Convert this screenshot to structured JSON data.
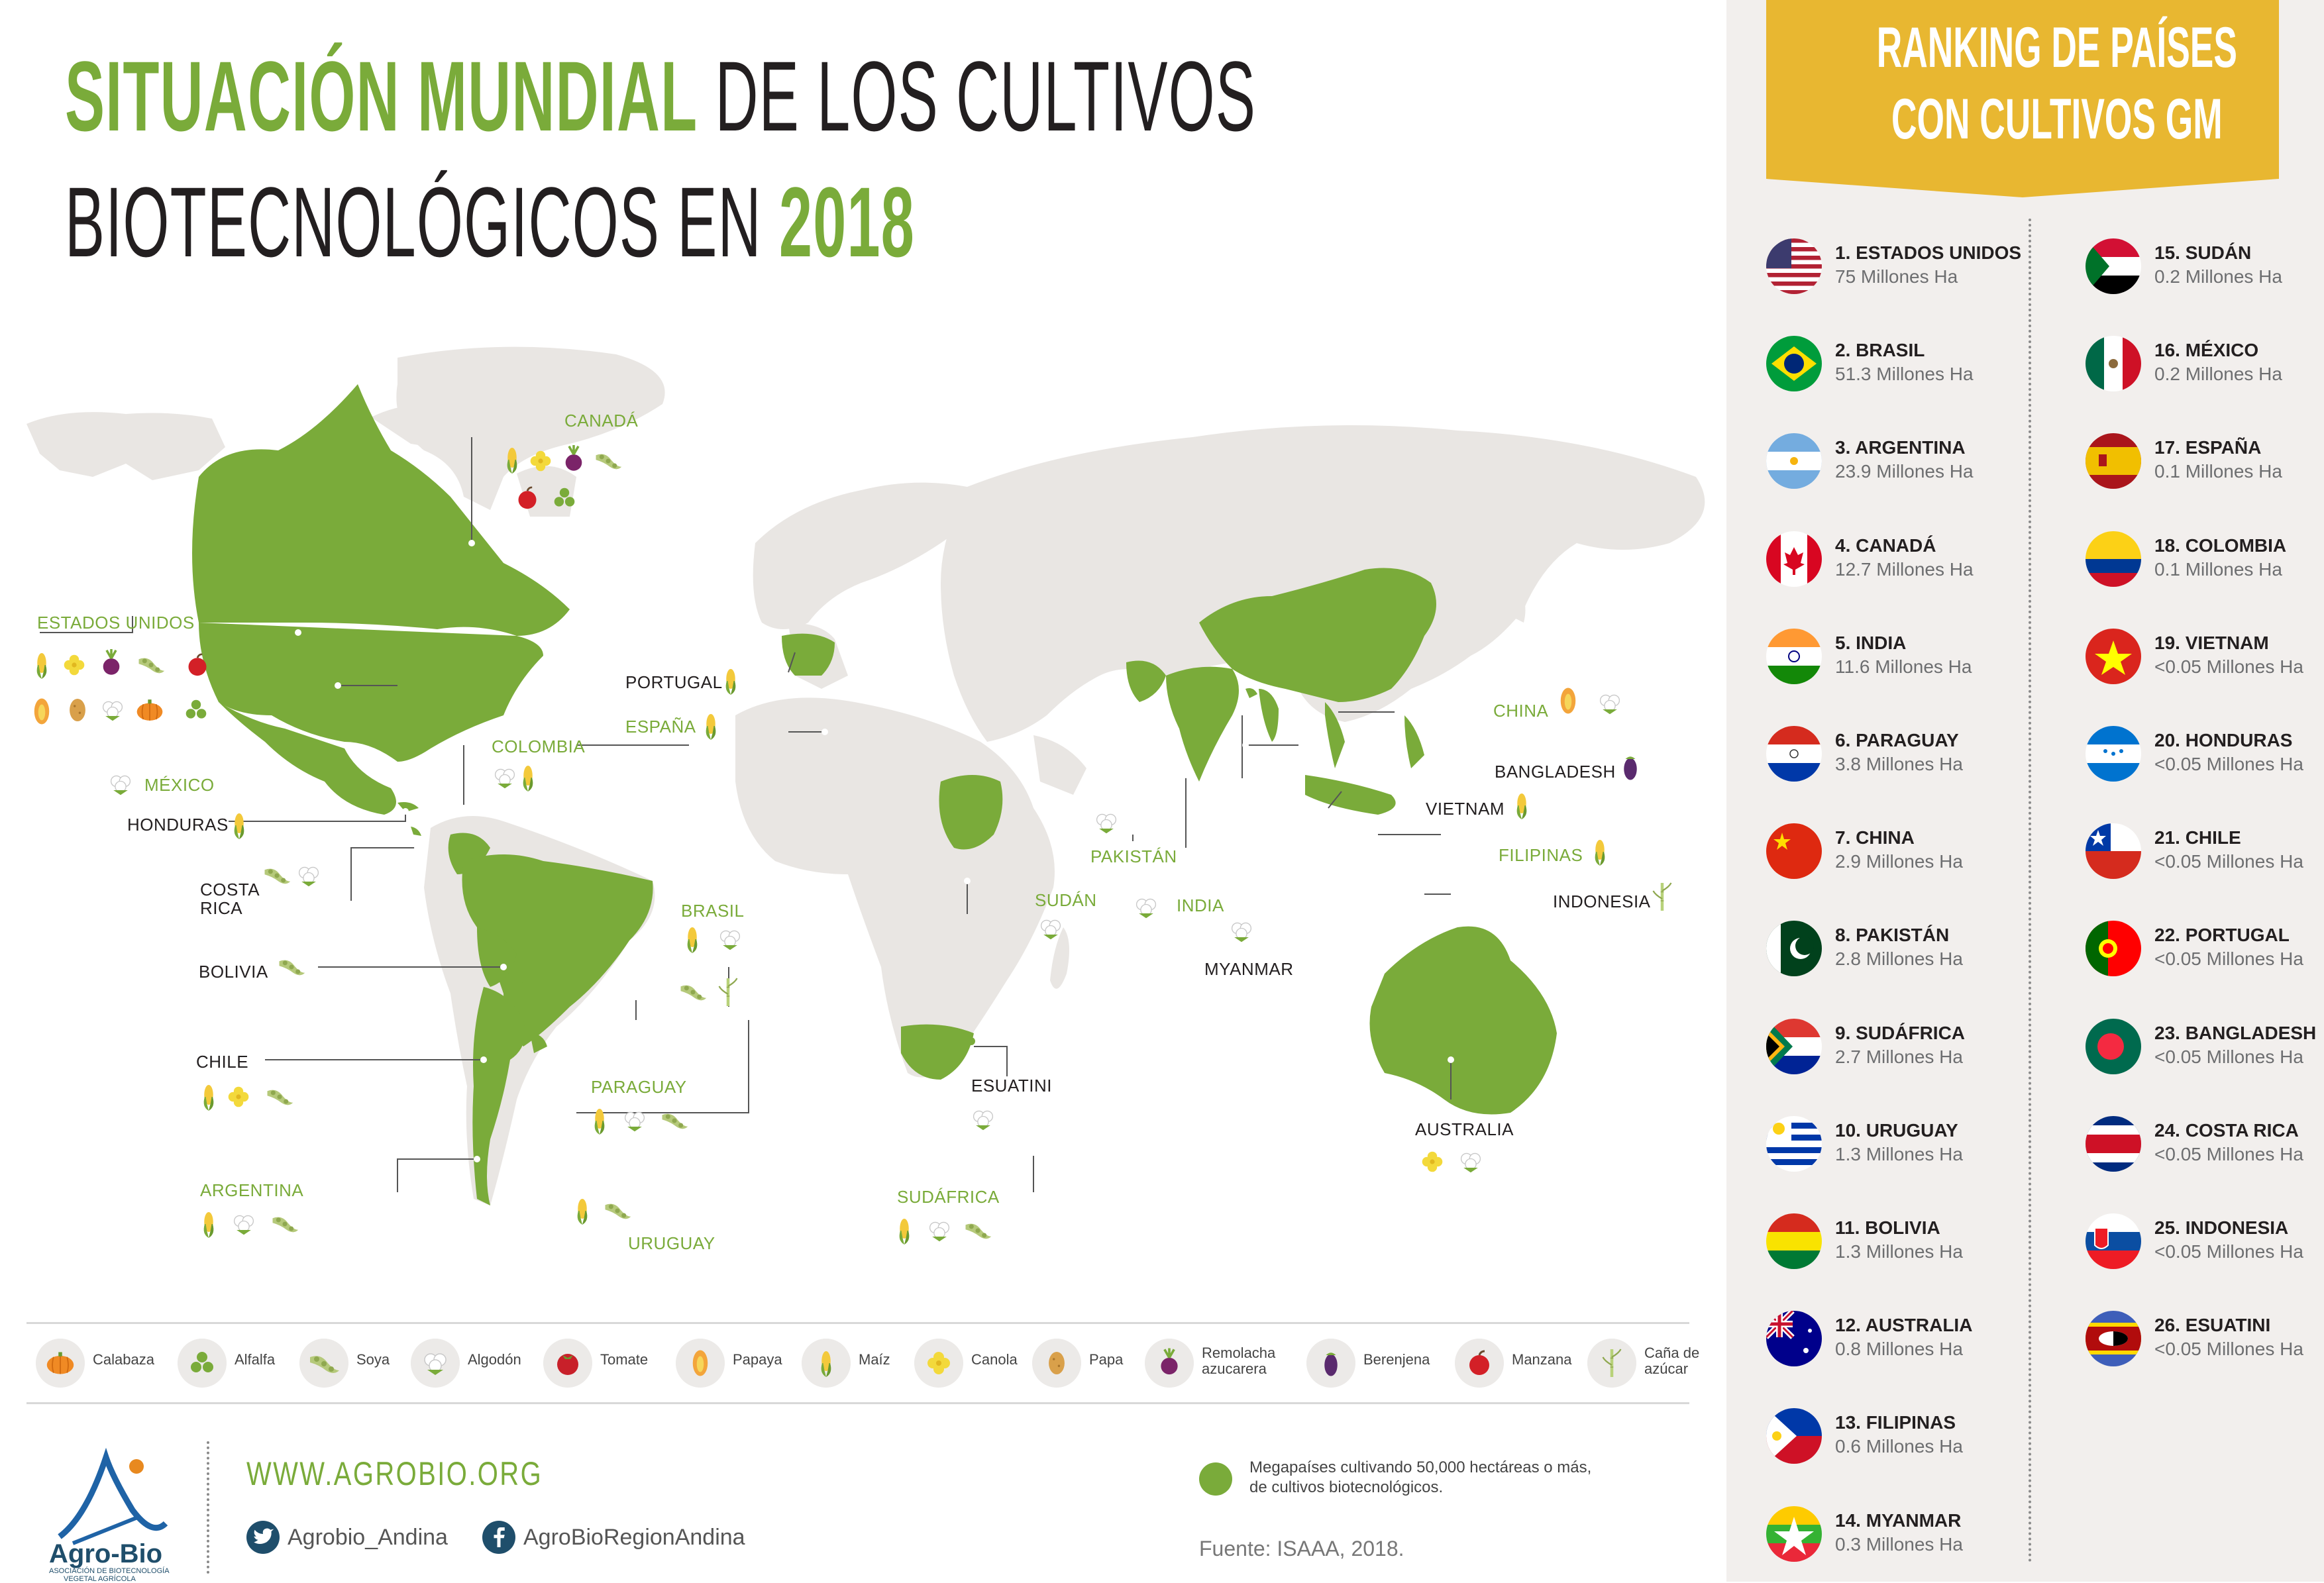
{
  "header": {
    "title_green_1": "SITUACIÓN MUNDIAL",
    "title_dark_1": " DE LOS CULTIVOS",
    "title_dark_2": "BIOTECNOLÓGICOS EN ",
    "title_green_2": "2018"
  },
  "map": {
    "land_color": "#e9e6e3",
    "gm_color": "#7aab3a",
    "mega_color": "#fbe8a0",
    "labels": {
      "canada": "CANADÁ",
      "usa": "ESTADOS UNIDOS",
      "mexico": "MÉXICO",
      "honduras": "HONDURAS",
      "costa_rica_1": "COSTA",
      "costa_rica_2": "RICA",
      "colombia": "COLOMBIA",
      "bolivia": "BOLIVIA",
      "chile": "CHILE",
      "argentina": "ARGENTINA",
      "brasil": "BRASIL",
      "paraguay": "PARAGUAY",
      "uruguay": "URUGUAY",
      "portugal": "PORTUGAL",
      "espana": "ESPAÑA",
      "sudan": "SUDÁN",
      "esuatini": "ESUATINI",
      "sudafrica": "SUDÁFRICA",
      "pakistan": "PAKISTÁN",
      "india": "INDIA",
      "myanmar": "MYANMAR",
      "china": "CHINA",
      "bangladesh": "BANGLADESH",
      "vietnam": "VIETNAM",
      "filipinas": "FILIPINAS",
      "indonesia": "INDONESIA",
      "australia": "AUSTRALIA"
    }
  },
  "legend": {
    "calabaza": "Calabaza",
    "alfalfa": "Alfalfa",
    "soya": "Soya",
    "algodon": "Algodón",
    "tomate": "Tomate",
    "papaya": "Papaya",
    "maiz": "Maíz",
    "canola": "Canola",
    "papa": "Papa",
    "remolacha_1": "Remolacha",
    "remolacha_2": "azucarera",
    "berenjena": "Berenjena",
    "manzana": "Manzana",
    "cana_1": "Caña de",
    "cana_2": "azúcar"
  },
  "footer": {
    "website": "WWW.AGROBIO.ORG",
    "twitter": "Agrobio_Andina",
    "facebook": "AgroBioRegionAndina",
    "logo_name": "Agro-Bio",
    "logo_sub_1": "ASOCIACIÓN DE BIOTECNOLOGÍA",
    "logo_sub_2": "VEGETAL AGRÍCOLA",
    "mega_note_1": "Megapaíses cultivando 50,000 hectáreas o más,",
    "mega_note_2": "de cultivos biotecnológicos.",
    "source": "Fuente: ISAAA, 2018."
  },
  "ranking": {
    "title_1": "RANKING DE PAÍSES",
    "title_2": "CON CULTIVOS GM",
    "banner_color": "#e8b731",
    "items": [
      {
        "name": "1. ESTADOS UNIDOS",
        "area": "75 Millones Ha",
        "flag": "usa"
      },
      {
        "name": "2. BRASIL",
        "area": "51.3 Millones Ha",
        "flag": "brasil"
      },
      {
        "name": "3. ARGENTINA",
        "area": "23.9 Millones Ha",
        "flag": "argentina"
      },
      {
        "name": "4. CANADÁ",
        "area": "12.7 Millones Ha",
        "flag": "canada"
      },
      {
        "name": "5. INDIA",
        "area": "11.6 Millones Ha",
        "flag": "india"
      },
      {
        "name": "6. PARAGUAY",
        "area": "3.8 Millones Ha",
        "flag": "paraguay"
      },
      {
        "name": "7. CHINA",
        "area": "2.9 Millones Ha",
        "flag": "china"
      },
      {
        "name": "8. PAKISTÁN",
        "area": "2.8 Millones Ha",
        "flag": "pakistan"
      },
      {
        "name": "9. SUDÁFRICA",
        "area": "2.7 Millones Ha",
        "flag": "sudafrica"
      },
      {
        "name": "10. URUGUAY",
        "area": "1.3 Millones Ha",
        "flag": "uruguay"
      },
      {
        "name": "11. BOLIVIA",
        "area": "1.3 Millones Ha",
        "flag": "bolivia"
      },
      {
        "name": "12. AUSTRALIA",
        "area": "0.8 Millones Ha",
        "flag": "australia"
      },
      {
        "name": "13. FILIPINAS",
        "area": "0.6 Millones Ha",
        "flag": "filipinas"
      },
      {
        "name": "14. MYANMAR",
        "area": "0.3 Millones Ha",
        "flag": "myanmar"
      },
      {
        "name": "15. SUDÁN",
        "area": "0.2 Millones Ha",
        "flag": "sudan"
      },
      {
        "name": "16. MÉXICO",
        "area": "0.2 Millones Ha",
        "flag": "mexico"
      },
      {
        "name": "17. ESPAÑA",
        "area": "0.1 Millones Ha",
        "flag": "espana"
      },
      {
        "name": "18. COLOMBIA",
        "area": "0.1 Millones Ha",
        "flag": "colombia"
      },
      {
        "name": "19. VIETNAM",
        "area": "<0.05 Millones Ha",
        "flag": "vietnam"
      },
      {
        "name": "20. HONDURAS",
        "area": "<0.05 Millones Ha",
        "flag": "honduras"
      },
      {
        "name": "21. CHILE",
        "area": "<0.05 Millones Ha",
        "flag": "chile"
      },
      {
        "name": "22. PORTUGAL",
        "area": "<0.05 Millones Ha",
        "flag": "portugal"
      },
      {
        "name": "23. BANGLADESH",
        "area": "<0.05 Millones Ha",
        "flag": "bangladesh"
      },
      {
        "name": "24. COSTA RICA",
        "area": "<0.05 Millones Ha",
        "flag": "costa-rica"
      },
      {
        "name": "25. INDONESIA",
        "area": "<0.05 Millones Ha",
        "flag": "indonesia"
      },
      {
        "name": "26. ESUATINI",
        "area": "<0.05 Millones Ha",
        "flag": "esuatini"
      }
    ]
  }
}
